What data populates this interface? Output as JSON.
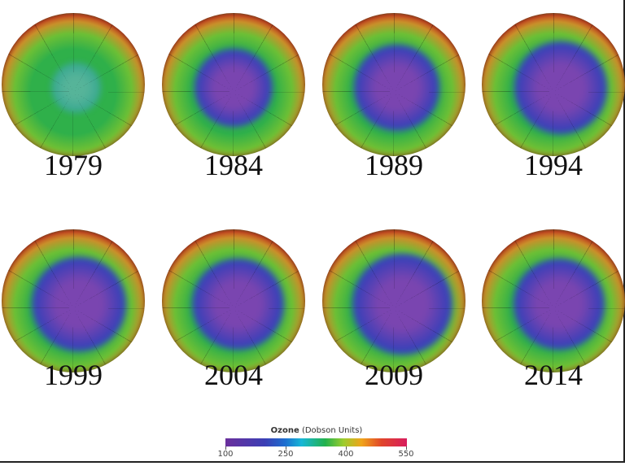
{
  "panels": [
    {
      "year": "1979"
    },
    {
      "year": "1984"
    },
    {
      "year": "1989"
    },
    {
      "year": "1994"
    },
    {
      "year": "1999"
    },
    {
      "year": "2004"
    },
    {
      "year": "2009"
    },
    {
      "year": "2014"
    }
  ],
  "colorbar": {
    "title_bold": "Ozone",
    "title_unit": "(Dobson Units)",
    "ticks": [
      "100",
      "250",
      "400",
      "550"
    ],
    "colors": [
      "#6a2f9c",
      "#3b3fb5",
      "#17b7d6",
      "#22b14c",
      "#f0a41a",
      "#d81d5e"
    ]
  }
}
